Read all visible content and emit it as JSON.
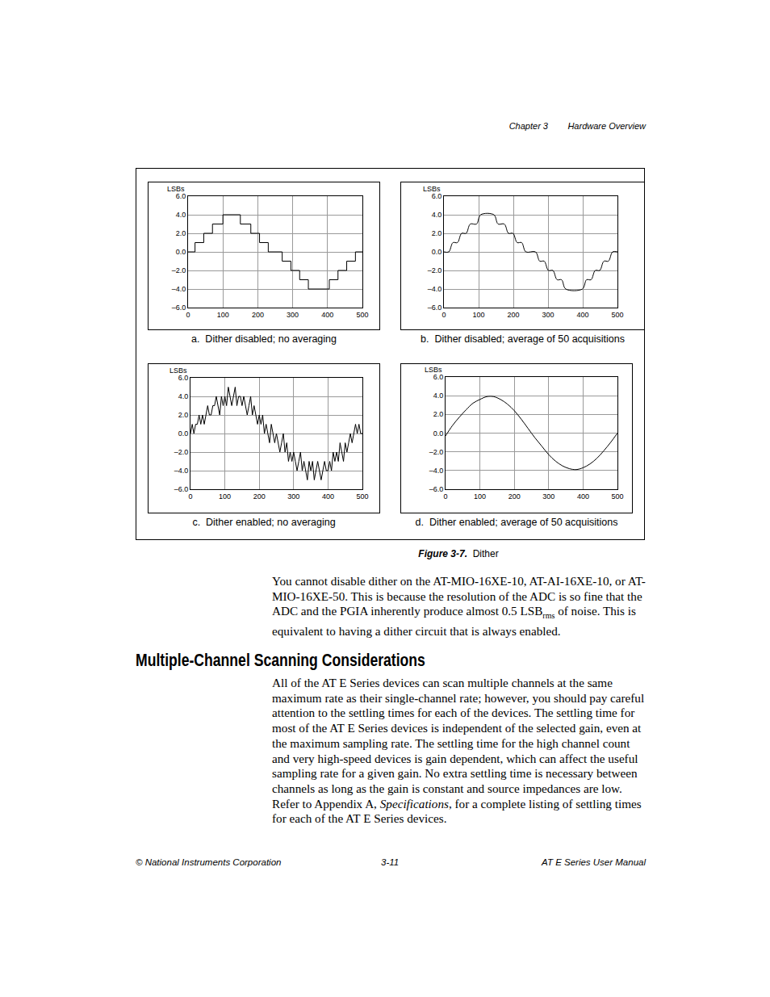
{
  "header": {
    "chapter": "Chapter 3",
    "section": "Hardware Overview"
  },
  "figure": {
    "caption_number": "Figure 3-7.",
    "caption_text": "Dither"
  },
  "chart_data": [
    {
      "type": "line",
      "title": "a.  Dither disabled; no averaging",
      "ylabel": "LSBs",
      "x": [
        0,
        20,
        45,
        70,
        100,
        150,
        180,
        205,
        230,
        270,
        295,
        320,
        345,
        405,
        430,
        455,
        480,
        500
      ],
      "values": [
        0,
        1,
        2,
        3,
        4,
        3,
        2,
        1,
        0,
        -1,
        -2,
        -3,
        -4,
        -3,
        -2,
        -1,
        0,
        0
      ],
      "color": "#000000",
      "line_style": "step",
      "xlim": [
        0,
        500
      ],
      "xticks": [
        0,
        100,
        200,
        300,
        400,
        500
      ],
      "ylim": [
        -6,
        6
      ],
      "yticks": [
        {
          "value": 6,
          "label": "6.0"
        },
        {
          "value": 4,
          "label": "4.0"
        },
        {
          "value": 2,
          "label": "2.0"
        },
        {
          "value": 0,
          "label": "0.0"
        },
        {
          "value": -2,
          "label": "–2.0"
        },
        {
          "value": -4,
          "label": "–4.0"
        },
        {
          "value": -6,
          "label": "–6.0"
        }
      ],
      "grid": true
    },
    {
      "type": "line",
      "title": "b.  Dither disabled; average of 50 acquisitions",
      "ylabel": "LSBs",
      "x": [
        0,
        14,
        26,
        39,
        51,
        64,
        76,
        94,
        106,
        144,
        156,
        174,
        186,
        199,
        211,
        224,
        236,
        264,
        276,
        289,
        301,
        314,
        326,
        339,
        351,
        399,
        411,
        424,
        436,
        449,
        461,
        474,
        486,
        500
      ],
      "values": [
        0,
        0,
        1,
        1,
        2,
        2,
        3,
        3,
        4,
        4,
        3,
        3,
        2,
        2,
        1,
        1,
        0,
        0,
        -1,
        -1,
        -2,
        -2,
        -3,
        -3,
        -4,
        -4,
        -3,
        -3,
        -2,
        -2,
        -1,
        -1,
        0,
        0
      ],
      "color": "#000000",
      "line_style": "smooth",
      "xlim": [
        0,
        500
      ],
      "xticks": [
        0,
        100,
        200,
        300,
        400,
        500
      ],
      "ylim": [
        -6,
        6
      ],
      "yticks": [
        {
          "value": 6,
          "label": "6.0"
        },
        {
          "value": 4,
          "label": "4.0"
        },
        {
          "value": 2,
          "label": "2.0"
        },
        {
          "value": 0,
          "label": "0.0"
        },
        {
          "value": -2,
          "label": "–2.0"
        },
        {
          "value": -4,
          "label": "–4.0"
        },
        {
          "value": -6,
          "label": "–6.0"
        }
      ],
      "grid": true
    },
    {
      "type": "line",
      "title": "c.  Dither enabled; no averaging",
      "ylabel": "LSBs",
      "x": [
        0,
        5,
        10,
        15,
        20,
        25,
        30,
        35,
        40,
        45,
        50,
        55,
        60,
        65,
        70,
        75,
        80,
        85,
        90,
        95,
        100,
        105,
        110,
        115,
        120,
        125,
        130,
        135,
        140,
        145,
        150,
        155,
        160,
        165,
        170,
        175,
        180,
        185,
        190,
        195,
        200,
        205,
        210,
        215,
        220,
        225,
        230,
        235,
        240,
        245,
        250,
        255,
        260,
        265,
        270,
        275,
        280,
        285,
        290,
        295,
        300,
        305,
        310,
        315,
        320,
        325,
        330,
        335,
        340,
        345,
        350,
        355,
        360,
        365,
        370,
        375,
        380,
        385,
        390,
        395,
        400,
        405,
        410,
        415,
        420,
        425,
        430,
        435,
        440,
        445,
        450,
        455,
        460,
        465,
        470,
        475,
        480,
        485,
        490,
        495,
        500
      ],
      "values": [
        0,
        1,
        0,
        1,
        1,
        2,
        1,
        2,
        1,
        2,
        3,
        2,
        2,
        3,
        3,
        4,
        3,
        2,
        4,
        3,
        4,
        3,
        5,
        4,
        3,
        4,
        5,
        3,
        4,
        4,
        3,
        4,
        3,
        2,
        3,
        4,
        2,
        3,
        2,
        1,
        2,
        1,
        2,
        0,
        1,
        0,
        -1,
        1,
        0,
        -1,
        0,
        -1,
        -2,
        -1,
        0,
        -2,
        -1,
        -3,
        -2,
        -3,
        -2,
        -3,
        -4,
        -3,
        -2,
        -4,
        -3,
        -4,
        -5,
        -3,
        -4,
        -3,
        -5,
        -4,
        -3,
        -4,
        -5,
        -4,
        -3,
        -4,
        -4,
        -3,
        -4,
        -2,
        -3,
        -2,
        -3,
        -1,
        -2,
        -3,
        -1,
        -2,
        -1,
        0,
        -1,
        0,
        1,
        0,
        1,
        0,
        0
      ],
      "color": "#000000",
      "line_style": "solid",
      "xlim": [
        0,
        500
      ],
      "xticks": [
        0,
        100,
        200,
        300,
        400,
        500
      ],
      "ylim": [
        -6,
        6
      ],
      "yticks": [
        {
          "value": 6,
          "label": "6.0"
        },
        {
          "value": 4,
          "label": "4.0"
        },
        {
          "value": 2,
          "label": "2.0"
        },
        {
          "value": 0,
          "label": "0.0"
        },
        {
          "value": -2,
          "label": "–2.0"
        },
        {
          "value": -4,
          "label": "–4.0"
        },
        {
          "value": -6,
          "label": "–6.0"
        }
      ],
      "grid": true
    },
    {
      "type": "line",
      "title": "d.  Dither enabled; average of 50 acquisitions",
      "ylabel": "LSBs",
      "x": [
        0,
        20,
        40,
        60,
        80,
        100,
        120,
        140,
        160,
        180,
        200,
        220,
        240,
        260,
        280,
        300,
        320,
        340,
        360,
        380,
        400,
        420,
        440,
        460,
        480,
        500
      ],
      "values": [
        -0.3,
        0.8,
        1.7,
        2.5,
        3.2,
        3.6,
        3.9,
        3.9,
        3.6,
        3.1,
        2.4,
        1.5,
        0.5,
        -0.5,
        -1.4,
        -2.3,
        -3.0,
        -3.5,
        -3.8,
        -3.9,
        -3.7,
        -3.3,
        -2.7,
        -1.9,
        -1.0,
        0.0
      ],
      "color": "#000000",
      "line_style": "smooth",
      "xlim": [
        0,
        500
      ],
      "xticks": [
        0,
        100,
        200,
        300,
        400,
        500
      ],
      "ylim": [
        -6,
        6
      ],
      "yticks": [
        {
          "value": 6,
          "label": "6.0"
        },
        {
          "value": 4,
          "label": "4.0"
        },
        {
          "value": 2,
          "label": "2.0"
        },
        {
          "value": 0,
          "label": "0.0"
        },
        {
          "value": -2,
          "label": "–2.0"
        },
        {
          "value": -4,
          "label": "–4.0"
        },
        {
          "value": -6,
          "label": "–6.0"
        }
      ],
      "grid": true
    }
  ],
  "body": {
    "paragraph_1": [
      {
        "text": "You cannot disable dither on the AT-MIO-16XE-10, AT-AI-16XE-10, or AT-MIO-16XE-50. This is because the resolution of the ADC is so fine that the ADC and the PGIA inherently produce almost 0.5 LSB"
      },
      {
        "text": "rms",
        "style": "sub"
      },
      {
        "text": " of noise. This is equivalent to having a dither circuit that is always enabled."
      }
    ],
    "heading": "Multiple-Channel Scanning Considerations",
    "paragraph_2": [
      {
        "text": "All of the AT E Series devices can scan multiple channels at the same maximum rate as their single-channel rate; however, you should pay careful attention to the settling times for each of the devices. The settling time for most of the AT E Series devices is independent of the selected gain, even at the maximum sampling rate. The settling time for the high channel count and very high-speed devices is gain dependent, which can affect the useful sampling rate for a given gain. No extra settling time is necessary between channels as long as the gain is constant and source impedances are low. Refer to Appendix A, "
      },
      {
        "text": "Specifications",
        "style": "italic"
      },
      {
        "text": ", for a complete listing of settling times for each of the AT E Series devices."
      }
    ]
  },
  "footer": {
    "left": "© National Instruments Corporation",
    "center": "3-11",
    "right": "AT E Series User Manual"
  }
}
